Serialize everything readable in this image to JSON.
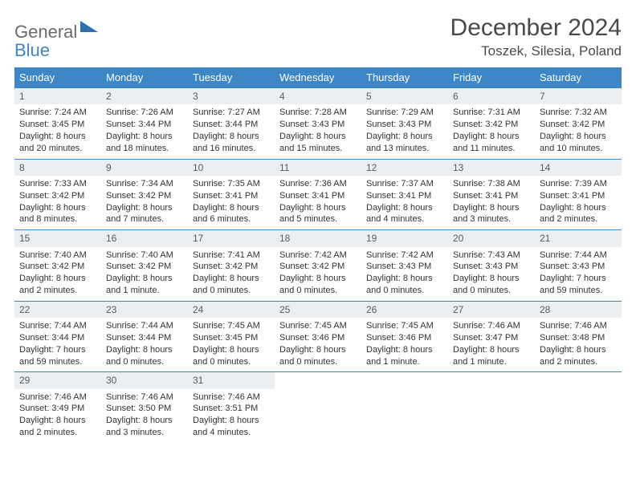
{
  "logo": {
    "line1": "General",
    "line2": "Blue"
  },
  "title": "December 2024",
  "location": "Toszek, Silesia, Poland",
  "colors": {
    "header_bg": "#3f86c7",
    "header_text": "#ffffff",
    "daynum_bg": "#eceff1",
    "daynum_text": "#5a5a5a",
    "body_text": "#333333",
    "divider": "#3f86c7"
  },
  "weekdays": [
    "Sunday",
    "Monday",
    "Tuesday",
    "Wednesday",
    "Thursday",
    "Friday",
    "Saturday"
  ],
  "weeks": [
    [
      {
        "n": "1",
        "sunrise": "Sunrise: 7:24 AM",
        "sunset": "Sunset: 3:45 PM",
        "daylight": "Daylight: 8 hours and 20 minutes."
      },
      {
        "n": "2",
        "sunrise": "Sunrise: 7:26 AM",
        "sunset": "Sunset: 3:44 PM",
        "daylight": "Daylight: 8 hours and 18 minutes."
      },
      {
        "n": "3",
        "sunrise": "Sunrise: 7:27 AM",
        "sunset": "Sunset: 3:44 PM",
        "daylight": "Daylight: 8 hours and 16 minutes."
      },
      {
        "n": "4",
        "sunrise": "Sunrise: 7:28 AM",
        "sunset": "Sunset: 3:43 PM",
        "daylight": "Daylight: 8 hours and 15 minutes."
      },
      {
        "n": "5",
        "sunrise": "Sunrise: 7:29 AM",
        "sunset": "Sunset: 3:43 PM",
        "daylight": "Daylight: 8 hours and 13 minutes."
      },
      {
        "n": "6",
        "sunrise": "Sunrise: 7:31 AM",
        "sunset": "Sunset: 3:42 PM",
        "daylight": "Daylight: 8 hours and 11 minutes."
      },
      {
        "n": "7",
        "sunrise": "Sunrise: 7:32 AM",
        "sunset": "Sunset: 3:42 PM",
        "daylight": "Daylight: 8 hours and 10 minutes."
      }
    ],
    [
      {
        "n": "8",
        "sunrise": "Sunrise: 7:33 AM",
        "sunset": "Sunset: 3:42 PM",
        "daylight": "Daylight: 8 hours and 8 minutes."
      },
      {
        "n": "9",
        "sunrise": "Sunrise: 7:34 AM",
        "sunset": "Sunset: 3:42 PM",
        "daylight": "Daylight: 8 hours and 7 minutes."
      },
      {
        "n": "10",
        "sunrise": "Sunrise: 7:35 AM",
        "sunset": "Sunset: 3:41 PM",
        "daylight": "Daylight: 8 hours and 6 minutes."
      },
      {
        "n": "11",
        "sunrise": "Sunrise: 7:36 AM",
        "sunset": "Sunset: 3:41 PM",
        "daylight": "Daylight: 8 hours and 5 minutes."
      },
      {
        "n": "12",
        "sunrise": "Sunrise: 7:37 AM",
        "sunset": "Sunset: 3:41 PM",
        "daylight": "Daylight: 8 hours and 4 minutes."
      },
      {
        "n": "13",
        "sunrise": "Sunrise: 7:38 AM",
        "sunset": "Sunset: 3:41 PM",
        "daylight": "Daylight: 8 hours and 3 minutes."
      },
      {
        "n": "14",
        "sunrise": "Sunrise: 7:39 AM",
        "sunset": "Sunset: 3:41 PM",
        "daylight": "Daylight: 8 hours and 2 minutes."
      }
    ],
    [
      {
        "n": "15",
        "sunrise": "Sunrise: 7:40 AM",
        "sunset": "Sunset: 3:42 PM",
        "daylight": "Daylight: 8 hours and 2 minutes."
      },
      {
        "n": "16",
        "sunrise": "Sunrise: 7:40 AM",
        "sunset": "Sunset: 3:42 PM",
        "daylight": "Daylight: 8 hours and 1 minute."
      },
      {
        "n": "17",
        "sunrise": "Sunrise: 7:41 AM",
        "sunset": "Sunset: 3:42 PM",
        "daylight": "Daylight: 8 hours and 0 minutes."
      },
      {
        "n": "18",
        "sunrise": "Sunrise: 7:42 AM",
        "sunset": "Sunset: 3:42 PM",
        "daylight": "Daylight: 8 hours and 0 minutes."
      },
      {
        "n": "19",
        "sunrise": "Sunrise: 7:42 AM",
        "sunset": "Sunset: 3:43 PM",
        "daylight": "Daylight: 8 hours and 0 minutes."
      },
      {
        "n": "20",
        "sunrise": "Sunrise: 7:43 AM",
        "sunset": "Sunset: 3:43 PM",
        "daylight": "Daylight: 8 hours and 0 minutes."
      },
      {
        "n": "21",
        "sunrise": "Sunrise: 7:44 AM",
        "sunset": "Sunset: 3:43 PM",
        "daylight": "Daylight: 7 hours and 59 minutes."
      }
    ],
    [
      {
        "n": "22",
        "sunrise": "Sunrise: 7:44 AM",
        "sunset": "Sunset: 3:44 PM",
        "daylight": "Daylight: 7 hours and 59 minutes."
      },
      {
        "n": "23",
        "sunrise": "Sunrise: 7:44 AM",
        "sunset": "Sunset: 3:44 PM",
        "daylight": "Daylight: 8 hours and 0 minutes."
      },
      {
        "n": "24",
        "sunrise": "Sunrise: 7:45 AM",
        "sunset": "Sunset: 3:45 PM",
        "daylight": "Daylight: 8 hours and 0 minutes."
      },
      {
        "n": "25",
        "sunrise": "Sunrise: 7:45 AM",
        "sunset": "Sunset: 3:46 PM",
        "daylight": "Daylight: 8 hours and 0 minutes."
      },
      {
        "n": "26",
        "sunrise": "Sunrise: 7:45 AM",
        "sunset": "Sunset: 3:46 PM",
        "daylight": "Daylight: 8 hours and 1 minute."
      },
      {
        "n": "27",
        "sunrise": "Sunrise: 7:46 AM",
        "sunset": "Sunset: 3:47 PM",
        "daylight": "Daylight: 8 hours and 1 minute."
      },
      {
        "n": "28",
        "sunrise": "Sunrise: 7:46 AM",
        "sunset": "Sunset: 3:48 PM",
        "daylight": "Daylight: 8 hours and 2 minutes."
      }
    ],
    [
      {
        "n": "29",
        "sunrise": "Sunrise: 7:46 AM",
        "sunset": "Sunset: 3:49 PM",
        "daylight": "Daylight: 8 hours and 2 minutes."
      },
      {
        "n": "30",
        "sunrise": "Sunrise: 7:46 AM",
        "sunset": "Sunset: 3:50 PM",
        "daylight": "Daylight: 8 hours and 3 minutes."
      },
      {
        "n": "31",
        "sunrise": "Sunrise: 7:46 AM",
        "sunset": "Sunset: 3:51 PM",
        "daylight": "Daylight: 8 hours and 4 minutes."
      },
      null,
      null,
      null,
      null
    ]
  ]
}
